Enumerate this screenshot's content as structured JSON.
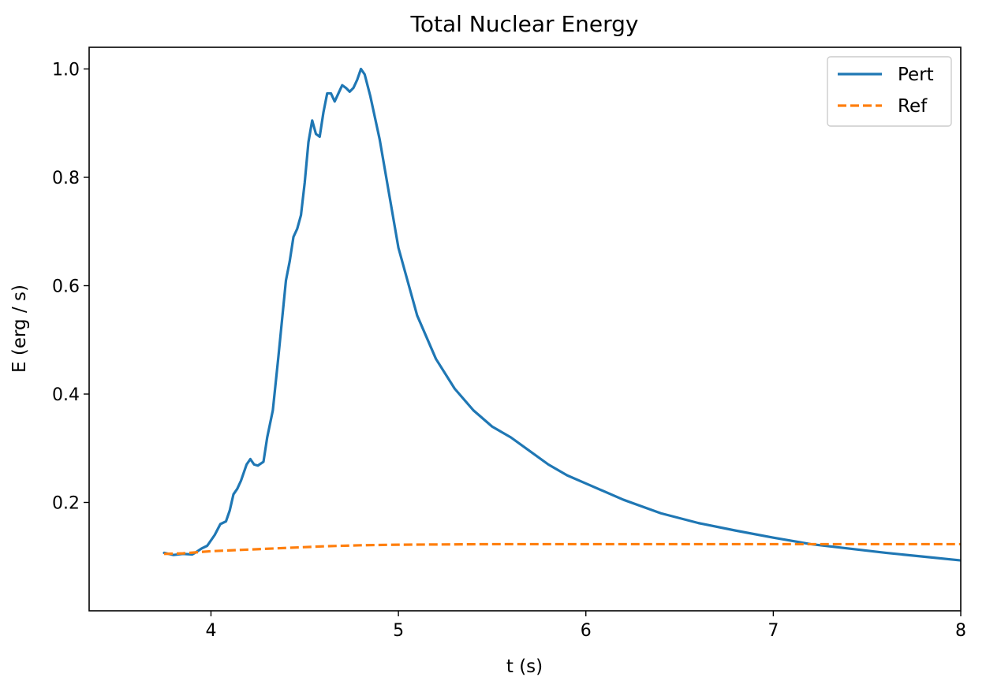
{
  "chart_data": {
    "type": "line",
    "title": "Total Nuclear Energy",
    "xlabel": "t (s)",
    "ylabel": "E (erg / s)",
    "xlim": [
      3.35,
      8.0
    ],
    "ylim": [
      0.0,
      1.04
    ],
    "xticks": [
      4,
      5,
      6,
      7,
      8
    ],
    "xtick_labels": [
      "4",
      "5",
      "6",
      "7",
      "8"
    ],
    "yticks": [
      0.2,
      0.4,
      0.6,
      0.8,
      1.0
    ],
    "ytick_labels": [
      "0.2",
      "0.4",
      "0.6",
      "0.8",
      "1.0"
    ],
    "grid": false,
    "legend": "top-right",
    "series": [
      {
        "name": "Pert",
        "color": "#1f77b4",
        "style": "solid",
        "x": [
          3.75,
          3.8,
          3.85,
          3.9,
          3.92,
          3.95,
          3.98,
          4.02,
          4.05,
          4.08,
          4.1,
          4.12,
          4.14,
          4.16,
          4.19,
          4.21,
          4.23,
          4.25,
          4.28,
          4.3,
          4.33,
          4.36,
          4.38,
          4.4,
          4.42,
          4.44,
          4.46,
          4.48,
          4.5,
          4.52,
          4.54,
          4.56,
          4.58,
          4.6,
          4.62,
          4.64,
          4.66,
          4.68,
          4.7,
          4.72,
          4.74,
          4.76,
          4.78,
          4.8,
          4.82,
          4.85,
          4.9,
          5.0,
          5.1,
          5.2,
          5.3,
          5.4,
          5.5,
          5.6,
          5.7,
          5.8,
          5.9,
          6.0,
          6.2,
          6.4,
          6.6,
          6.8,
          7.0,
          7.2,
          7.4,
          7.6,
          7.8,
          8.0
        ],
        "y": [
          0.107,
          0.103,
          0.105,
          0.104,
          0.108,
          0.115,
          0.12,
          0.14,
          0.16,
          0.165,
          0.185,
          0.215,
          0.225,
          0.24,
          0.27,
          0.28,
          0.27,
          0.268,
          0.275,
          0.32,
          0.37,
          0.47,
          0.54,
          0.61,
          0.645,
          0.69,
          0.705,
          0.73,
          0.79,
          0.865,
          0.905,
          0.88,
          0.875,
          0.92,
          0.955,
          0.955,
          0.94,
          0.955,
          0.97,
          0.965,
          0.958,
          0.965,
          0.98,
          1.0,
          0.99,
          0.95,
          0.87,
          0.67,
          0.545,
          0.465,
          0.41,
          0.37,
          0.34,
          0.32,
          0.295,
          0.27,
          0.25,
          0.235,
          0.205,
          0.18,
          0.162,
          0.148,
          0.135,
          0.123,
          0.115,
          0.107,
          0.1,
          0.093
        ]
      },
      {
        "name": "Ref",
        "color": "#ff7f0e",
        "style": "dashed",
        "x": [
          3.75,
          3.85,
          4.0,
          4.2,
          4.4,
          4.6,
          4.8,
          5.0,
          5.5,
          6.0,
          6.5,
          7.0,
          7.5,
          8.0
        ],
        "y": [
          0.105,
          0.106,
          0.11,
          0.113,
          0.116,
          0.119,
          0.121,
          0.122,
          0.123,
          0.123,
          0.123,
          0.123,
          0.123,
          0.123
        ]
      }
    ]
  }
}
